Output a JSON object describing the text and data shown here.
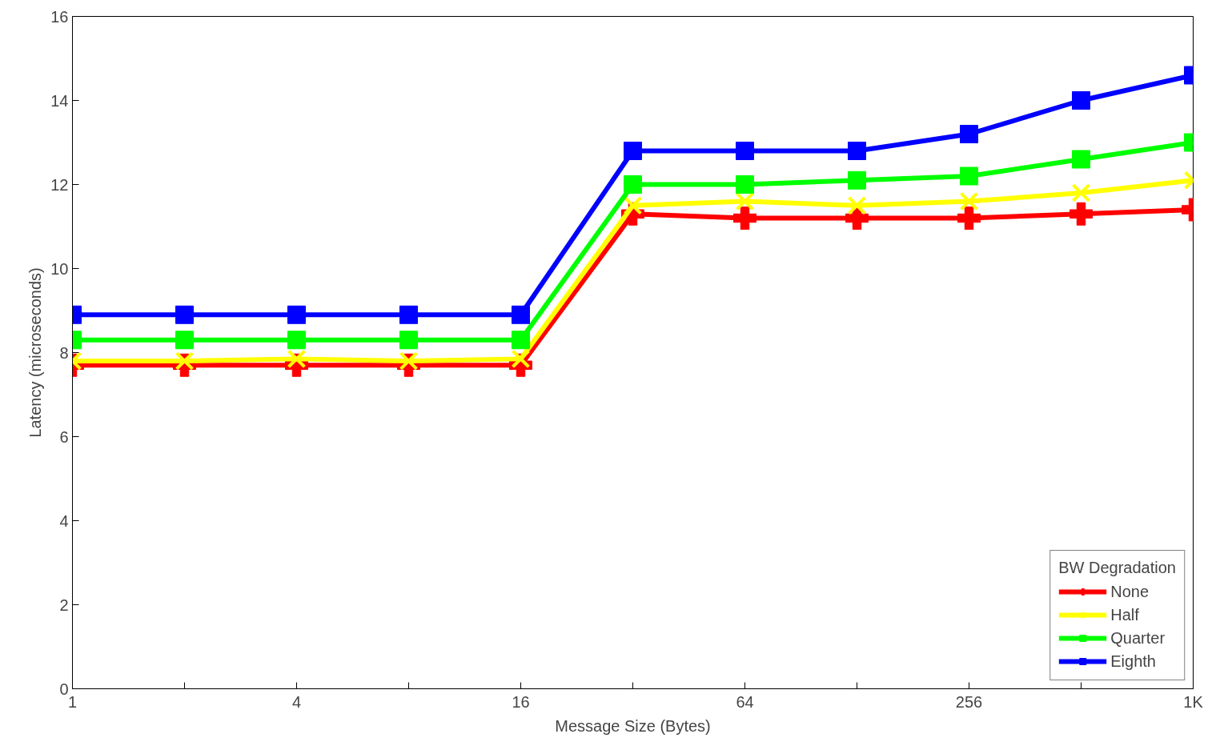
{
  "chart_data": {
    "type": "line",
    "xlabel": "Message Size (Bytes)",
    "ylabel": "Latency (microseconds)",
    "legend_title": "BW Degradation",
    "legend": "bottom right",
    "log": "x",
    "grid": false,
    "line_style": "solid",
    "x": [
      1,
      2,
      4,
      8,
      16,
      32,
      64,
      128,
      256,
      512,
      1024
    ],
    "xlim": [
      1,
      1024
    ],
    "xticks": [
      1,
      {
        "value": 2,
        "label": null
      },
      4,
      {
        "value": 8,
        "label": null
      },
      16,
      {
        "value": 32,
        "label": null
      },
      64,
      {
        "value": 128,
        "label": null
      },
      256,
      {
        "value": 512,
        "label": null
      },
      {
        "value": 1024,
        "label": "1K"
      }
    ],
    "ylim": [
      0,
      16
    ],
    "yticks": [
      0,
      2,
      4,
      6,
      8,
      10,
      12,
      14,
      16
    ],
    "series": [
      {
        "name": "None",
        "color": "#ff0000",
        "marker": "cross",
        "values": [
          7.7,
          7.7,
          7.7,
          7.7,
          7.7,
          11.3,
          11.2,
          11.2,
          11.2,
          11.3,
          11.4
        ]
      },
      {
        "name": "Half",
        "color": "#ffff00",
        "marker": "x",
        "values": [
          7.8,
          7.8,
          7.85,
          7.8,
          7.85,
          11.5,
          11.6,
          11.5,
          11.6,
          11.8,
          12.1
        ]
      },
      {
        "name": "Quarter",
        "color": "#00ff00",
        "marker": "square",
        "values": [
          8.3,
          8.3,
          8.3,
          8.3,
          8.3,
          12.0,
          12.0,
          12.1,
          12.2,
          12.6,
          13.0
        ]
      },
      {
        "name": "Eighth",
        "color": "#0000ff",
        "marker": "square",
        "values": [
          8.9,
          8.9,
          8.9,
          8.9,
          8.9,
          12.8,
          12.8,
          12.8,
          13.2,
          14.0,
          14.6
        ]
      }
    ]
  }
}
